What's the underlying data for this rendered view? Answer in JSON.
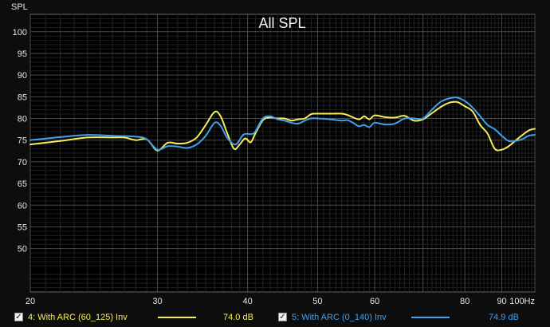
{
  "chart_data": {
    "type": "line",
    "title": "All SPL",
    "ylabel": "SPL",
    "xlabel": "",
    "x_scale": "log",
    "xlim": [
      20,
      100
    ],
    "ylim": [
      40,
      104
    ],
    "grid": true,
    "x_ticks": [
      20,
      30,
      40,
      50,
      60,
      70,
      80,
      90,
      100
    ],
    "x_tick_labels": [
      "20",
      "30",
      "40",
      "50",
      "60",
      "",
      "80",
      "90",
      "100Hz"
    ],
    "y_ticks": [
      50,
      55,
      60,
      65,
      70,
      75,
      80,
      85,
      90,
      95,
      100
    ],
    "y_tick_labels": [
      "50",
      "55",
      "60",
      "65",
      "70",
      "75",
      "80",
      "85",
      "90",
      "95",
      "100"
    ],
    "series": [
      {
        "name": "4: With ARC (60_125) Inv",
        "color": "#f5ee5a",
        "value_label": "74.0 dB",
        "points": [
          [
            20,
            74.0
          ],
          [
            22,
            74.8
          ],
          [
            24,
            75.6
          ],
          [
            26,
            75.6
          ],
          [
            27,
            75.6
          ],
          [
            28,
            75.0
          ],
          [
            29,
            75.2
          ],
          [
            30,
            72.6
          ],
          [
            31,
            74.4
          ],
          [
            32,
            74.2
          ],
          [
            33,
            74.4
          ],
          [
            34,
            75.6
          ],
          [
            35,
            78.5
          ],
          [
            36,
            81.5
          ],
          [
            36.7,
            80.5
          ],
          [
            37.5,
            76.5
          ],
          [
            38.3,
            73.0
          ],
          [
            39,
            74.0
          ],
          [
            39.7,
            75.4
          ],
          [
            40.4,
            74.5
          ],
          [
            41,
            76.5
          ],
          [
            42,
            79.6
          ],
          [
            43,
            80.2
          ],
          [
            44,
            80.0
          ],
          [
            45,
            80.0
          ],
          [
            46,
            79.5
          ],
          [
            47,
            79.8
          ],
          [
            48,
            80.0
          ],
          [
            49,
            81.0
          ],
          [
            50,
            81.1
          ],
          [
            52,
            81.1
          ],
          [
            54,
            81.1
          ],
          [
            55,
            80.8
          ],
          [
            57,
            79.8
          ],
          [
            58,
            80.5
          ],
          [
            59,
            79.8
          ],
          [
            60,
            80.7
          ],
          [
            62,
            80.3
          ],
          [
            64,
            80.2
          ],
          [
            66,
            80.6
          ],
          [
            68,
            79.5
          ],
          [
            70,
            79.8
          ],
          [
            72,
            81.2
          ],
          [
            74,
            82.6
          ],
          [
            76,
            83.6
          ],
          [
            78,
            83.8
          ],
          [
            80,
            82.8
          ],
          [
            82,
            81.6
          ],
          [
            84,
            78.5
          ],
          [
            86,
            76.5
          ],
          [
            88,
            73.0
          ],
          [
            90,
            72.8
          ],
          [
            92,
            73.6
          ],
          [
            95,
            75.5
          ],
          [
            98,
            77.2
          ],
          [
            100,
            77.6
          ]
        ]
      },
      {
        "name": "5: With ARC (0_140) Inv",
        "color": "#3fa0ee",
        "value_label": "74.9 dB",
        "points": [
          [
            20,
            75.0
          ],
          [
            22,
            75.7
          ],
          [
            24,
            76.2
          ],
          [
            26,
            76.0
          ],
          [
            28,
            75.8
          ],
          [
            29,
            75.2
          ],
          [
            30,
            72.8
          ],
          [
            31,
            73.6
          ],
          [
            32,
            73.5
          ],
          [
            33,
            73.2
          ],
          [
            34,
            74.0
          ],
          [
            35,
            76.0
          ],
          [
            36,
            79.0
          ],
          [
            36.7,
            78.3
          ],
          [
            37.5,
            75.5
          ],
          [
            38.5,
            74.0
          ],
          [
            39.5,
            76.3
          ],
          [
            40.5,
            76.4
          ],
          [
            41,
            77.0
          ],
          [
            42,
            80.0
          ],
          [
            43,
            80.5
          ],
          [
            44,
            79.8
          ],
          [
            45,
            79.5
          ],
          [
            46,
            79.0
          ],
          [
            47,
            78.8
          ],
          [
            48,
            79.5
          ],
          [
            49,
            80.0
          ],
          [
            50,
            80.0
          ],
          [
            52,
            79.8
          ],
          [
            54,
            79.5
          ],
          [
            55,
            79.6
          ],
          [
            56,
            79.0
          ],
          [
            57,
            78.2
          ],
          [
            58,
            78.5
          ],
          [
            59,
            78.0
          ],
          [
            60,
            79.0
          ],
          [
            62,
            78.6
          ],
          [
            64,
            78.8
          ],
          [
            66,
            80.0
          ],
          [
            68,
            80.0
          ],
          [
            70,
            80.0
          ],
          [
            72,
            82.0
          ],
          [
            74,
            83.8
          ],
          [
            76,
            84.6
          ],
          [
            78,
            84.8
          ],
          [
            80,
            84.0
          ],
          [
            82,
            82.5
          ],
          [
            84,
            80.5
          ],
          [
            86,
            78.5
          ],
          [
            88,
            77.5
          ],
          [
            90,
            76.0
          ],
          [
            92,
            74.8
          ],
          [
            94,
            74.8
          ],
          [
            96,
            75.2
          ],
          [
            98,
            76.0
          ],
          [
            100,
            76.2
          ]
        ]
      }
    ]
  },
  "legend": {
    "check_mark": "✓",
    "items": [
      {
        "label": "4: With ARC (60_125) Inv",
        "value": "74.0 dB",
        "color": "#f5ee5a"
      },
      {
        "label": "5: With ARC (0_140) Inv",
        "value": "74.9 dB",
        "color": "#3fa0ee"
      }
    ]
  }
}
